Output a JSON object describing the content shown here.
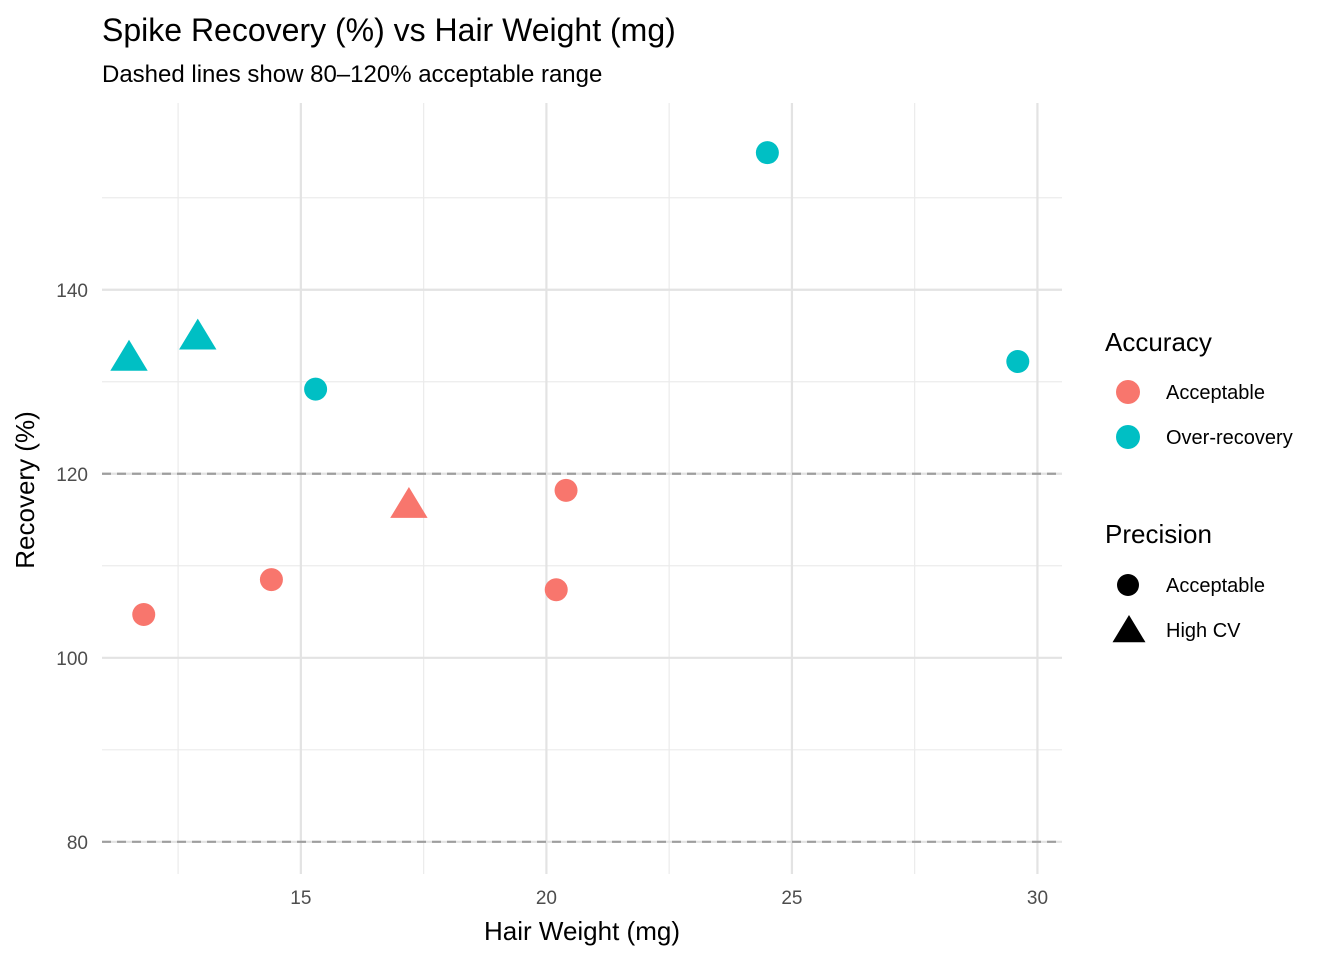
{
  "chart_data": {
    "type": "scatter",
    "title": "Spike Recovery (%) vs Hair Weight (mg)",
    "subtitle": "Dashed lines show 80–120% acceptable range",
    "xlabel": "Hair Weight (mg)",
    "ylabel": "Recovery (%)",
    "xlim": [
      10.95,
      30.5
    ],
    "ylim": [
      76.5,
      160.3
    ],
    "x_ticks": [
      15,
      20,
      25,
      30
    ],
    "y_ticks": [
      80,
      100,
      120,
      140
    ],
    "x_minor": [
      12.5,
      17.5,
      22.5,
      27.5
    ],
    "y_minor": [
      90,
      110,
      130,
      150
    ],
    "reference_lines": [
      80,
      120
    ],
    "grid": true,
    "legend_position": "right",
    "accuracy_legend": {
      "title": "Accuracy",
      "items": [
        {
          "label": "Acceptable",
          "color": "#F8766D"
        },
        {
          "label": "Over-recovery",
          "color": "#00BFC4"
        }
      ]
    },
    "precision_legend": {
      "title": "Precision",
      "items": [
        {
          "label": "Acceptable",
          "shape": "circle"
        },
        {
          "label": "High CV",
          "shape": "triangle"
        }
      ]
    },
    "points": [
      {
        "x": 11.8,
        "y": 104.7,
        "accuracy": "Acceptable",
        "precision": "Acceptable"
      },
      {
        "x": 14.4,
        "y": 108.5,
        "accuracy": "Acceptable",
        "precision": "Acceptable"
      },
      {
        "x": 17.2,
        "y": 116.5,
        "accuracy": "Acceptable",
        "precision": "High CV"
      },
      {
        "x": 20.2,
        "y": 107.4,
        "accuracy": "Acceptable",
        "precision": "Acceptable"
      },
      {
        "x": 20.4,
        "y": 118.2,
        "accuracy": "Acceptable",
        "precision": "Acceptable"
      },
      {
        "x": 11.5,
        "y": 132.5,
        "accuracy": "Over-recovery",
        "precision": "High CV"
      },
      {
        "x": 12.9,
        "y": 134.8,
        "accuracy": "Over-recovery",
        "precision": "High CV"
      },
      {
        "x": 15.3,
        "y": 129.2,
        "accuracy": "Over-recovery",
        "precision": "Acceptable"
      },
      {
        "x": 24.5,
        "y": 154.9,
        "accuracy": "Over-recovery",
        "precision": "Acceptable"
      },
      {
        "x": 29.6,
        "y": 132.2,
        "accuracy": "Over-recovery",
        "precision": "Acceptable"
      }
    ]
  }
}
